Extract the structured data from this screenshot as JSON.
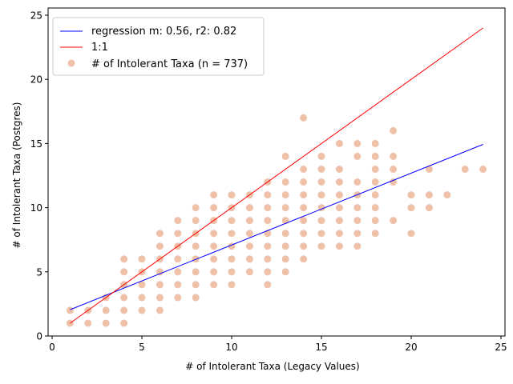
{
  "chart_data": {
    "type": "scatter",
    "xlabel": "# of Intolerant Taxa (Legacy Values)",
    "ylabel": "# of Intolerant Taxa (Postgres)",
    "xlim": [
      0,
      25
    ],
    "ylim": [
      0,
      25
    ],
    "x_ticks": [
      0,
      5,
      10,
      15,
      20,
      25
    ],
    "y_ticks": [
      0,
      5,
      10,
      15,
      20,
      25
    ],
    "grid": false,
    "legend_placement": "upper-left",
    "colors": {
      "regression": "#0000ff",
      "identity": "#ff0000",
      "points": "#dd8452"
    },
    "lines": [
      {
        "name": "regression m: 0.56, r2: 0.82",
        "color": "#0000ff",
        "x": [
          1,
          24
        ],
        "y": [
          2.05,
          14.93
        ]
      },
      {
        "name": "1:1",
        "color": "#ff0000",
        "x": [
          1,
          24
        ],
        "y": [
          1,
          24
        ]
      }
    ],
    "scatter": {
      "name": "# of Intolerant Taxa (n = 737)",
      "color": "#dd8452",
      "points": [
        [
          1,
          1
        ],
        [
          1,
          2
        ],
        [
          2,
          1
        ],
        [
          2,
          2
        ],
        [
          3,
          1
        ],
        [
          3,
          2
        ],
        [
          3,
          3
        ],
        [
          4,
          1
        ],
        [
          4,
          2
        ],
        [
          4,
          3
        ],
        [
          4,
          4
        ],
        [
          4,
          5
        ],
        [
          4,
          6
        ],
        [
          5,
          2
        ],
        [
          5,
          3
        ],
        [
          5,
          4
        ],
        [
          5,
          5
        ],
        [
          5,
          6
        ],
        [
          6,
          2
        ],
        [
          6,
          3
        ],
        [
          6,
          4
        ],
        [
          6,
          5
        ],
        [
          6,
          6
        ],
        [
          6,
          7
        ],
        [
          6,
          8
        ],
        [
          7,
          3
        ],
        [
          7,
          4
        ],
        [
          7,
          5
        ],
        [
          7,
          6
        ],
        [
          7,
          7
        ],
        [
          7,
          8
        ],
        [
          7,
          9
        ],
        [
          8,
          3
        ],
        [
          8,
          4
        ],
        [
          8,
          5
        ],
        [
          8,
          6
        ],
        [
          8,
          7
        ],
        [
          8,
          8
        ],
        [
          8,
          9
        ],
        [
          8,
          10
        ],
        [
          9,
          4
        ],
        [
          9,
          5
        ],
        [
          9,
          6
        ],
        [
          9,
          7
        ],
        [
          9,
          8
        ],
        [
          9,
          9
        ],
        [
          9,
          10
        ],
        [
          9,
          11
        ],
        [
          10,
          4
        ],
        [
          10,
          5
        ],
        [
          10,
          6
        ],
        [
          10,
          7
        ],
        [
          10,
          8
        ],
        [
          10,
          9
        ],
        [
          10,
          10
        ],
        [
          10,
          11
        ],
        [
          11,
          5
        ],
        [
          11,
          6
        ],
        [
          11,
          7
        ],
        [
          11,
          8
        ],
        [
          11,
          9
        ],
        [
          11,
          10
        ],
        [
          11,
          11
        ],
        [
          12,
          4
        ],
        [
          12,
          5
        ],
        [
          12,
          6
        ],
        [
          12,
          7
        ],
        [
          12,
          8
        ],
        [
          12,
          9
        ],
        [
          12,
          10
        ],
        [
          12,
          11
        ],
        [
          12,
          12
        ],
        [
          13,
          5
        ],
        [
          13,
          6
        ],
        [
          13,
          7
        ],
        [
          13,
          8
        ],
        [
          13,
          9
        ],
        [
          13,
          10
        ],
        [
          13,
          11
        ],
        [
          13,
          12
        ],
        [
          13,
          14
        ],
        [
          14,
          6
        ],
        [
          14,
          7
        ],
        [
          14,
          8
        ],
        [
          14,
          9
        ],
        [
          14,
          10
        ],
        [
          14,
          11
        ],
        [
          14,
          12
        ],
        [
          14,
          13
        ],
        [
          14,
          17
        ],
        [
          15,
          7
        ],
        [
          15,
          8
        ],
        [
          15,
          9
        ],
        [
          15,
          10
        ],
        [
          15,
          11
        ],
        [
          15,
          12
        ],
        [
          15,
          13
        ],
        [
          15,
          14
        ],
        [
          16,
          7
        ],
        [
          16,
          8
        ],
        [
          16,
          9
        ],
        [
          16,
          10
        ],
        [
          16,
          11
        ],
        [
          16,
          12
        ],
        [
          16,
          13
        ],
        [
          16,
          15
        ],
        [
          17,
          7
        ],
        [
          17,
          8
        ],
        [
          17,
          9
        ],
        [
          17,
          10
        ],
        [
          17,
          11
        ],
        [
          17,
          12
        ],
        [
          17,
          14
        ],
        [
          17,
          15
        ],
        [
          18,
          8
        ],
        [
          18,
          9
        ],
        [
          18,
          10
        ],
        [
          18,
          11
        ],
        [
          18,
          12
        ],
        [
          18,
          13
        ],
        [
          18,
          14
        ],
        [
          18,
          15
        ],
        [
          19,
          9
        ],
        [
          19,
          12
        ],
        [
          19,
          13
        ],
        [
          19,
          14
        ],
        [
          19,
          16
        ],
        [
          20,
          8
        ],
        [
          20,
          10
        ],
        [
          20,
          11
        ],
        [
          21,
          10
        ],
        [
          21,
          11
        ],
        [
          21,
          13
        ],
        [
          22,
          11
        ],
        [
          23,
          13
        ],
        [
          24,
          13
        ]
      ]
    }
  }
}
